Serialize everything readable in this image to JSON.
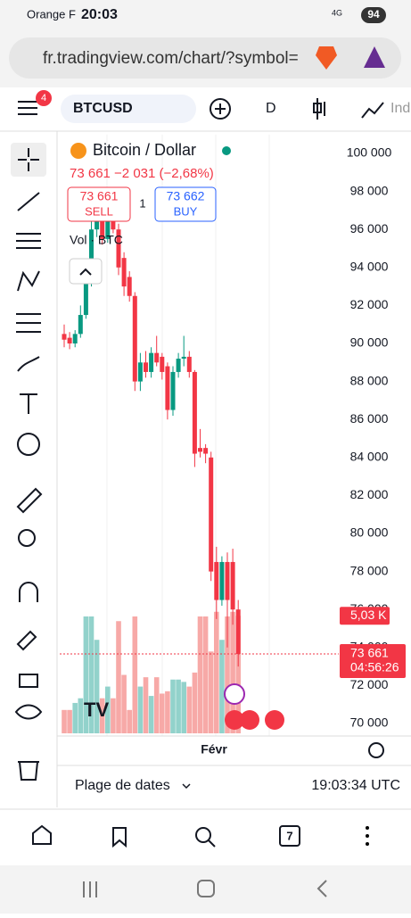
{
  "status": {
    "carrier": "Orange F",
    "time": "20:03",
    "network": "4G",
    "battery": "94"
  },
  "browser": {
    "url": "fr.tradingview.com/chart/?symbol="
  },
  "toolbar": {
    "badge": "4",
    "symbol": "BTCUSD",
    "interval": "D",
    "indicators": "Ind"
  },
  "header": {
    "name": "Bitcoin / Dollar",
    "change": "73 661  −2 031 (−2,68%)",
    "sell_price": "73 661",
    "sell": "SELL",
    "qty": "1",
    "buy_price": "73 662",
    "buy": "BUY",
    "volume": "Vol · BTC"
  },
  "chart_data": {
    "type": "candlestick",
    "open": [
      90500,
      90300,
      90000,
      90500,
      91500,
      93500,
      96000,
      96500,
      95500,
      97000,
      96000,
      94500,
      93500,
      92500,
      88000,
      89000,
      88500,
      89500,
      89300,
      88800,
      86500,
      88500,
      89200,
      89300,
      88500,
      84500,
      84500,
      84000,
      78500,
      76500,
      78500,
      78500,
      76000
    ],
    "high": [
      91000,
      90600,
      90700,
      92000,
      94000,
      96500,
      97000,
      96800,
      97200,
      97300,
      96300,
      94800,
      93800,
      92700,
      89500,
      89600,
      89800,
      90400,
      89500,
      89000,
      88800,
      89500,
      90400,
      89600,
      88600,
      85500,
      84700,
      84300,
      79300,
      78800,
      79000,
      79200,
      76500
    ],
    "low": [
      89800,
      89700,
      89800,
      90300,
      91300,
      93000,
      95600,
      95200,
      95300,
      95800,
      93600,
      92500,
      92200,
      87500,
      87500,
      88200,
      88200,
      88800,
      88100,
      86000,
      86200,
      88200,
      88800,
      88200,
      83500,
      84000,
      83700,
      77500,
      75500,
      76200,
      74000,
      75200,
      73000
    ],
    "close": [
      90200,
      90000,
      90500,
      91500,
      93500,
      96000,
      96500,
      95500,
      96800,
      96000,
      94000,
      93000,
      92500,
      88000,
      89000,
      88500,
      89500,
      89000,
      88500,
      86500,
      88500,
      89200,
      89300,
      88500,
      84200,
      84300,
      84200,
      78000,
      76500,
      78500,
      76500,
      76000,
      73661
    ],
    "volume": [
      1,
      1,
      1.3,
      1.5,
      5,
      5,
      4,
      1.5,
      2,
      1.5,
      4.8,
      2.5,
      1,
      5,
      2,
      2.4,
      1.6,
      2.4,
      1.7,
      1.8,
      2.3,
      2.3,
      2.2,
      2,
      2.6,
      5,
      5,
      3.5,
      5.2,
      4,
      5,
      5.2,
      5.03
    ],
    "volume_label": "5,03 K",
    "up_color": "#089981",
    "down_color": "#f23645",
    "vol_up_color": "#92d2cb",
    "vol_down_color": "#f7a9a7",
    "ylim": [
      69500,
      101000
    ],
    "yticks": [
      {
        "value": 100000,
        "label": "100 000"
      },
      {
        "value": 98000,
        "label": "98 000"
      },
      {
        "value": 96000,
        "label": "96 000"
      },
      {
        "value": 94000,
        "label": "94 000"
      },
      {
        "value": 92000,
        "label": "92 000"
      },
      {
        "value": 90000,
        "label": "90 000"
      },
      {
        "value": 88000,
        "label": "88 000"
      },
      {
        "value": 86000,
        "label": "86 000"
      },
      {
        "value": 84000,
        "label": "84 000"
      },
      {
        "value": 82000,
        "label": "82 000"
      },
      {
        "value": 80000,
        "label": "80 000"
      },
      {
        "value": 78000,
        "label": "78 000"
      },
      {
        "value": 76000,
        "label": "76 000"
      },
      {
        "value": 74000,
        "label": "74 000"
      },
      {
        "value": 72000,
        "label": "72 000"
      },
      {
        "value": 70000,
        "label": "70 000"
      }
    ],
    "last_price": {
      "value": 73661,
      "label": "73 661"
    },
    "countdown": "04:56:26",
    "x_label": "Févr"
  },
  "footer": {
    "range": "Plage de dates",
    "clock": "19:03:34 UTC"
  },
  "nav": {
    "tabs": "7"
  }
}
